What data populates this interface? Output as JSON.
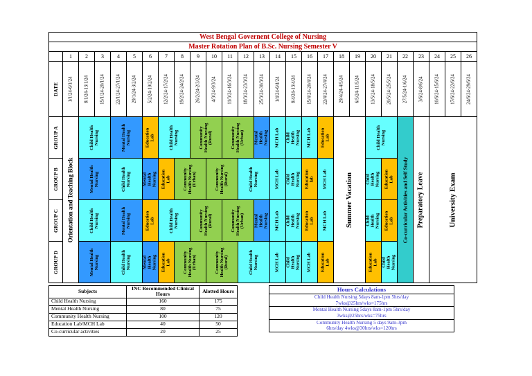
{
  "titles": {
    "college": "West Bengal Governent College of Nursing",
    "plan": "Master Rotation Plan of B.Sc. Nursing Semester V"
  },
  "colors": {
    "child_health": "#66FFFF",
    "mental_health": "#3399FF",
    "community_health": "#92D050",
    "education_lab": "#FFC000",
    "mch_lab": "#66FFFF",
    "cocurricular": "#33CCCC",
    "plain": "#FFFFFF",
    "title_text": "#C00000",
    "hours_text": "#3333CC"
  },
  "weeks": [
    "1",
    "2",
    "3",
    "4",
    "5",
    "6",
    "7",
    "8",
    "9",
    "10",
    "11",
    "12",
    "13",
    "14",
    "15",
    "16",
    "17",
    "18",
    "19",
    "20",
    "21",
    "22",
    "23",
    "24",
    "25",
    "26"
  ],
  "dates": [
    "1/1/24-6/1/24",
    "8/1/24-13/1/24",
    "15/1/24-20/1/24",
    "22/1/24-27/1/24",
    "29/1/24-3/2/24",
    "5/2/24-10/2/24",
    "12/2/24-17/2/24",
    "19/2/24-24/2/24",
    "26/2/24-2/3/24",
    "4/3/24-9/3/24",
    "11/3/24-16/3/24",
    "18/3/24-23/3/24",
    "25/3/24-30/3/24",
    "1/4/24-6/4/24",
    "8/4/24-13/4/24",
    "15/4/24-20/4/24",
    "22/4/24-27/4/24",
    "29/4/24-4/5/24",
    "6/5/24-11/5/24",
    "13/5/24-18/5/24",
    "20/5/24-25/5/24",
    "27/5/24-1/6/24",
    "3/6/24-8/6/24",
    "10/6/24-15/6/24",
    "17/6/24-22/6/24",
    "24/6/24-29/6/24"
  ],
  "row_labels": {
    "date": "DATE",
    "groups": [
      "GROUP A",
      "GROUP B",
      "GROUP C",
      "GROUP D"
    ]
  },
  "full_columns": [
    {
      "label": "Orientation and Teaching Block",
      "col": 1,
      "span": 1,
      "color": "plain"
    },
    {
      "label": "Summer Vacation",
      "col": 18,
      "span": 2,
      "color": "plain"
    },
    {
      "label": "Co-curricular Activities and Self Study",
      "col": 22,
      "span": 1,
      "color": "cocurricular"
    },
    {
      "label": "Preparatory Leave",
      "col": 23,
      "span": 1,
      "color": "plain"
    },
    {
      "label": "University Exam",
      "col": 24,
      "span": 3,
      "color": "plain"
    }
  ],
  "groups": [
    {
      "name": "GROUP A",
      "cells": [
        {
          "label": "Child Health Nursing",
          "span": 2,
          "color": "child_health"
        },
        {
          "label": "Mental Health Nursing",
          "span": 2,
          "color": "mental_health"
        },
        {
          "label": "Education Lab",
          "span": 1,
          "color": "education_lab"
        },
        {
          "label": "Child Health Nursing",
          "span": 2,
          "color": "child_health"
        },
        {
          "label": "Community Health Nursing (Rural)",
          "span": 2,
          "color": "community_health"
        },
        {
          "label": "Community Health Nursing (Urban)",
          "span": 2,
          "color": "community_health"
        },
        {
          "label": "Mental Health Nursing",
          "span": 1,
          "color": "mental_health"
        },
        {
          "label": "MCH Lab",
          "span": 1,
          "color": "mch_lab"
        },
        {
          "label": "Child Health Nursing",
          "span": 1,
          "color": "child_health"
        },
        {
          "label": "MCH Lab",
          "span": 1,
          "color": "mch_lab"
        },
        {
          "label": "Education Lab",
          "span": 1,
          "color": "education_lab"
        },
        {
          "label": "Child Health Nursing",
          "span": 2,
          "color": "child_health"
        }
      ]
    },
    {
      "name": "GROUP B",
      "cells": [
        {
          "label": "Mental Health Nursing",
          "span": 2,
          "color": "mental_health"
        },
        {
          "label": "Child Health Nursing",
          "span": 2,
          "color": "child_health"
        },
        {
          "label": "Mental Health Nursing",
          "span": 1,
          "color": "mental_health"
        },
        {
          "label": "Education Lab",
          "span": 1,
          "color": "education_lab"
        },
        {
          "label": "Community Health Nursing (Urban)",
          "span": 2,
          "color": "community_health"
        },
        {
          "label": "Community Health Nursing (Rural)",
          "span": 2,
          "color": "community_health"
        },
        {
          "label": "Child Health Nursing",
          "span": 2,
          "color": "child_health"
        },
        {
          "label": "MCH Lab",
          "span": 1,
          "color": "mch_lab"
        },
        {
          "label": "Child Health Nursing",
          "span": 1,
          "color": "child_health"
        },
        {
          "label": "Education lab",
          "span": 1,
          "color": "education_lab"
        },
        {
          "label": "MCH Lab",
          "span": 1,
          "color": "mch_lab"
        },
        {
          "label": "Child Health Nursing",
          "span": 1,
          "color": "child_health"
        },
        {
          "label": "Education Lab",
          "span": 1,
          "color": "education_lab"
        }
      ]
    },
    {
      "name": "GROUP C",
      "cells": [
        {
          "label": "Child Health Nursing",
          "span": 2,
          "color": "child_health"
        },
        {
          "label": "Mental Health Nursing",
          "span": 2,
          "color": "mental_health"
        },
        {
          "label": "Education Lab",
          "span": 1,
          "color": "education_lab"
        },
        {
          "label": "Child Health Nursing",
          "span": 2,
          "color": "child_health"
        },
        {
          "label": "Community Health Nursing (Rural)",
          "span": 2,
          "color": "community_health"
        },
        {
          "label": "Community Health Nursing (Urban)",
          "span": 2,
          "color": "community_health"
        },
        {
          "label": "Mental Health Nursing",
          "span": 1,
          "color": "mental_health"
        },
        {
          "label": "MCH Lab",
          "span": 1,
          "color": "mch_lab"
        },
        {
          "label": "Child Health Nursing",
          "span": 1,
          "color": "child_health"
        },
        {
          "label": "Education Lab",
          "span": 1,
          "color": "education_lab"
        },
        {
          "label": "MCH Lab",
          "span": 1,
          "color": "mch_lab"
        },
        {
          "label": "Child Health Nursing",
          "span": 1,
          "color": "child_health"
        },
        {
          "label": "Education Lab",
          "span": 1,
          "color": "education_lab"
        }
      ]
    },
    {
      "name": "GROUP D",
      "cells": [
        {
          "label": "Mental Health Nursing",
          "span": 2,
          "color": "mental_health"
        },
        {
          "label": "Child Health Nursing",
          "span": 2,
          "color": "child_health"
        },
        {
          "label": "Mental Health Nursing",
          "span": 1,
          "color": "mental_health"
        },
        {
          "label": "Education Lab",
          "span": 1,
          "color": "education_lab"
        },
        {
          "label": "Community Health Nursing (Urban)",
          "span": 2,
          "color": "community_health"
        },
        {
          "label": "Community Health Nursing (Rural)",
          "span": 2,
          "color": "community_health"
        },
        {
          "label": "Child Health Nursing",
          "span": 2,
          "color": "child_health"
        },
        {
          "label": "MCH Lab",
          "span": 1,
          "color": "mch_lab"
        },
        {
          "label": "Child Health Nursing",
          "span": 1,
          "color": "child_health"
        },
        {
          "label": "MCH Lab",
          "span": 1,
          "color": "mch_lab"
        },
        {
          "label": "Education Lab",
          "span": 1,
          "color": "education_lab"
        },
        {
          "label": "Education Lab",
          "span": 1,
          "color": "education_lab"
        },
        {
          "label": "Child Health Nursing",
          "span": 1,
          "color": "child_health"
        }
      ]
    }
  ],
  "subjects_table": {
    "headers": [
      "Subjects",
      "INC Recommended Clinical Hours",
      "Alotted Hours"
    ],
    "rows": [
      [
        "Child Health Nursing",
        "160",
        "175"
      ],
      [
        "Mental Health Nursing",
        "80",
        "75"
      ],
      [
        "Community Health Nursing",
        "100",
        "120"
      ],
      [
        "Education Lab/MCH Lab",
        "40",
        "50"
      ],
      [
        "Co-curricular activities",
        "20",
        "25"
      ]
    ]
  },
  "hours_table": {
    "header": "Hours Calculations",
    "rows": [
      {
        "line1": "Child Health Nursing 5days 8am-1pm 5hrs/day",
        "line2": "7wks@25hrs/wks=175hrs"
      },
      {
        "line1": "Mental Health Nursing 5days 8am-1pm 5hrs/day",
        "line2": "3wks@25hrs/wks=75hrs"
      },
      {
        "line1": "Community Health Nursing 5 days 9am-3pm",
        "line2": "6hrs/day 4wks@30hrs/wks=120hrs"
      }
    ]
  }
}
